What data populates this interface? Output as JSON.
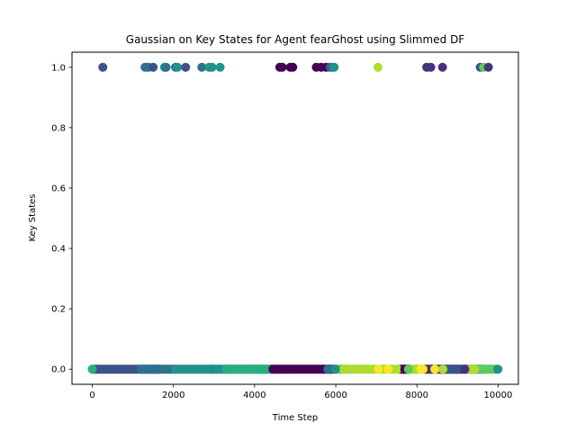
{
  "chart_data": {
    "type": "scatter",
    "title": "Gaussian on Key States for Agent fearGhost using Slimmed DF",
    "xlabel": "Time Step",
    "ylabel": "Key States",
    "xlim": [
      -500,
      10500
    ],
    "ylim": [
      -0.05,
      1.05
    ],
    "xticks": [
      0,
      2000,
      4000,
      6000,
      8000,
      10000
    ],
    "yticks": [
      0.0,
      0.2,
      0.4,
      0.6,
      0.8,
      1.0
    ],
    "xtick_labels": [
      "0",
      "2000",
      "4000",
      "6000",
      "8000",
      "10000"
    ],
    "ytick_labels": [
      "0.0",
      "0.2",
      "0.4",
      "0.6",
      "0.8",
      "1.0"
    ],
    "grid": false,
    "colormap": "viridis",
    "marker_color_scale": {
      "dark_purple": "#440154",
      "indigo": "#3b528b",
      "teal_blue": "#2c728e",
      "teal": "#21918c",
      "sea_green": "#28ae80",
      "green": "#5ec962",
      "lime": "#addc30",
      "yellow": "#fde725"
    },
    "points_y1": [
      {
        "x": 260,
        "y": 1,
        "color": "#3b528b"
      },
      {
        "x": 1300,
        "y": 1,
        "color": "#2c728e"
      },
      {
        "x": 1380,
        "y": 1,
        "color": "#2c728e"
      },
      {
        "x": 1500,
        "y": 1,
        "color": "#3b528b"
      },
      {
        "x": 1780,
        "y": 1,
        "color": "#21918c"
      },
      {
        "x": 1820,
        "y": 1,
        "color": "#2c728e"
      },
      {
        "x": 2050,
        "y": 1,
        "color": "#2c728e"
      },
      {
        "x": 2100,
        "y": 1,
        "color": "#21918c"
      },
      {
        "x": 2300,
        "y": 1,
        "color": "#3b528b"
      },
      {
        "x": 2700,
        "y": 1,
        "color": "#2c728e"
      },
      {
        "x": 2880,
        "y": 1,
        "color": "#21918c"
      },
      {
        "x": 2950,
        "y": 1,
        "color": "#21918c"
      },
      {
        "x": 3150,
        "y": 1,
        "color": "#21918c"
      },
      {
        "x": 4620,
        "y": 1,
        "color": "#440154"
      },
      {
        "x": 4680,
        "y": 1,
        "color": "#440154"
      },
      {
        "x": 4880,
        "y": 1,
        "color": "#440154"
      },
      {
        "x": 4940,
        "y": 1,
        "color": "#440154"
      },
      {
        "x": 5520,
        "y": 1,
        "color": "#440154"
      },
      {
        "x": 5640,
        "y": 1,
        "color": "#440154"
      },
      {
        "x": 5760,
        "y": 1,
        "color": "#440154"
      },
      {
        "x": 5860,
        "y": 1,
        "color": "#3b528b"
      },
      {
        "x": 5920,
        "y": 1,
        "color": "#2c728e"
      },
      {
        "x": 5960,
        "y": 1,
        "color": "#21918c"
      },
      {
        "x": 7040,
        "y": 1,
        "color": "#addc30"
      },
      {
        "x": 8240,
        "y": 1,
        "color": "#46327e"
      },
      {
        "x": 8340,
        "y": 1,
        "color": "#46327e"
      },
      {
        "x": 8630,
        "y": 1,
        "color": "#46327e"
      },
      {
        "x": 9560,
        "y": 1,
        "color": "#3b528b"
      },
      {
        "x": 9640,
        "y": 1,
        "color": "#5ec962"
      },
      {
        "x": 9760,
        "y": 1,
        "color": "#46327e"
      }
    ],
    "segments_y0": [
      {
        "from": 0,
        "to": 120,
        "color": "#28ae80"
      },
      {
        "from": 80,
        "to": 1650,
        "color": "#3b528b"
      },
      {
        "from": 1200,
        "to": 2050,
        "color": "#2c728e"
      },
      {
        "from": 2050,
        "to": 3000,
        "color": "#21918c"
      },
      {
        "from": 2900,
        "to": 4450,
        "color": "#21918c"
      },
      {
        "from": 3300,
        "to": 4450,
        "color": "#28ae80"
      },
      {
        "from": 4450,
        "to": 5900,
        "color": "#440154"
      },
      {
        "from": 5800,
        "to": 6000,
        "color": "#3b528b"
      },
      {
        "from": 6000,
        "to": 6300,
        "color": "#5ec962"
      },
      {
        "from": 6200,
        "to": 8000,
        "color": "#addc30"
      },
      {
        "from": 7600,
        "to": 7800,
        "color": "#440154"
      },
      {
        "from": 7900,
        "to": 8400,
        "color": "#addc30"
      },
      {
        "from": 8100,
        "to": 8700,
        "color": "#fde725"
      },
      {
        "from": 8200,
        "to": 9600,
        "color": "#46327e"
      },
      {
        "from": 8600,
        "to": 9000,
        "color": "#3b528b"
      },
      {
        "from": 9300,
        "to": 9500,
        "color": "#addc30"
      },
      {
        "from": 9500,
        "to": 10000,
        "color": "#5ec962"
      }
    ],
    "points_y0_highlight": [
      {
        "x": 0,
        "y": 0,
        "color": "#28ae80"
      },
      {
        "x": 1570,
        "y": 0,
        "color": "#2c728e"
      },
      {
        "x": 5820,
        "y": 0,
        "color": "#2c728e"
      },
      {
        "x": 5990,
        "y": 0,
        "color": "#21918c"
      },
      {
        "x": 6300,
        "y": 0,
        "color": "#addc30"
      },
      {
        "x": 7050,
        "y": 0,
        "color": "#fde725"
      },
      {
        "x": 7290,
        "y": 0,
        "color": "#fde725"
      },
      {
        "x": 7520,
        "y": 0,
        "color": "#addc30"
      },
      {
        "x": 7700,
        "y": 0,
        "color": "#440154"
      },
      {
        "x": 7790,
        "y": 0,
        "color": "#5ec962"
      },
      {
        "x": 8150,
        "y": 0,
        "color": "#fde725"
      },
      {
        "x": 8440,
        "y": 0,
        "color": "#fde725"
      },
      {
        "x": 8640,
        "y": 0,
        "color": "#addc30"
      },
      {
        "x": 8990,
        "y": 0,
        "color": "#3b528b"
      },
      {
        "x": 9180,
        "y": 0,
        "color": "#46327e"
      },
      {
        "x": 9420,
        "y": 0,
        "color": "#addc30"
      },
      {
        "x": 9660,
        "y": 0,
        "color": "#5ec962"
      },
      {
        "x": 9830,
        "y": 0,
        "color": "#5ec962"
      },
      {
        "x": 9990,
        "y": 0,
        "color": "#21918c"
      }
    ]
  }
}
